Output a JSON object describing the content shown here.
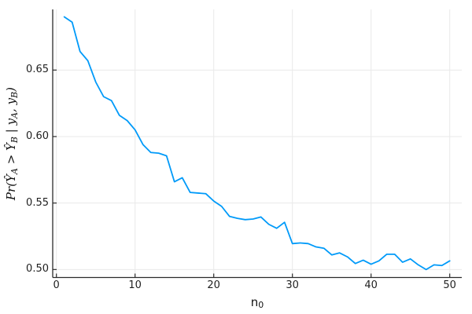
{
  "chart_data": {
    "type": "line",
    "title": "",
    "xlabel": "n",
    "xlabel_sub": "0",
    "ylabel_text": "Pr(Ŷ_A > Ŷ_B | y_A, y_B)",
    "ylabel_segments": [
      {
        "text": "Pr(",
        "sub": false
      },
      {
        "text": "Ŷ",
        "sub": false
      },
      {
        "text": "A",
        "sub": true
      },
      {
        "text": " > ",
        "sub": false
      },
      {
        "text": "Ŷ",
        "sub": false
      },
      {
        "text": "B",
        "sub": true
      },
      {
        "text": " | ",
        "sub": false
      },
      {
        "text": "y",
        "sub": false
      },
      {
        "text": "A",
        "sub": true
      },
      {
        "text": ", ",
        "sub": false
      },
      {
        "text": "y",
        "sub": false
      },
      {
        "text": "B",
        "sub": true
      },
      {
        "text": ")",
        "sub": false
      }
    ],
    "x_ticks": [
      "0",
      "10",
      "20",
      "30",
      "40",
      "50"
    ],
    "x_tick_values": [
      0,
      10,
      20,
      30,
      40,
      50
    ],
    "y_ticks": [
      "0.50",
      "0.55",
      "0.60",
      "0.65"
    ],
    "y_tick_values": [
      0.5,
      0.55,
      0.6,
      0.65
    ],
    "xlim": [
      -0.47,
      51.53
    ],
    "ylim": [
      0.494,
      0.6956
    ],
    "grid": true,
    "legend": "none",
    "line_color": "#009af9",
    "axis_color": "#2b2b2b",
    "grid_color": "#e9e9e9",
    "tick_label_color": "#1f1f1f",
    "background": "#ffffff",
    "x": [
      1,
      2,
      3,
      4,
      5,
      6,
      7,
      8,
      9,
      10,
      11,
      12,
      13,
      14,
      15,
      16,
      17,
      18,
      19,
      20,
      21,
      22,
      23,
      24,
      25,
      26,
      27,
      28,
      29,
      30,
      31,
      32,
      33,
      34,
      35,
      36,
      37,
      38,
      39,
      40,
      41,
      42,
      43,
      44,
      45,
      46,
      47,
      48,
      49,
      50
    ],
    "y": [
      0.69,
      0.686,
      0.664,
      0.657,
      0.641,
      0.63,
      0.627,
      0.616,
      0.612,
      0.605,
      0.594,
      0.588,
      0.5875,
      0.5855,
      0.566,
      0.569,
      0.558,
      0.5575,
      0.557,
      0.5515,
      0.5475,
      0.54,
      0.5385,
      0.5375,
      0.538,
      0.5395,
      0.534,
      0.531,
      0.5355,
      0.5195,
      0.52,
      0.5195,
      0.517,
      0.516,
      0.511,
      0.5125,
      0.5095,
      0.5045,
      0.507,
      0.504,
      0.5065,
      0.5115,
      0.5115,
      0.5055,
      0.508,
      0.5035,
      0.5,
      0.5035,
      0.503,
      0.5065
    ]
  }
}
